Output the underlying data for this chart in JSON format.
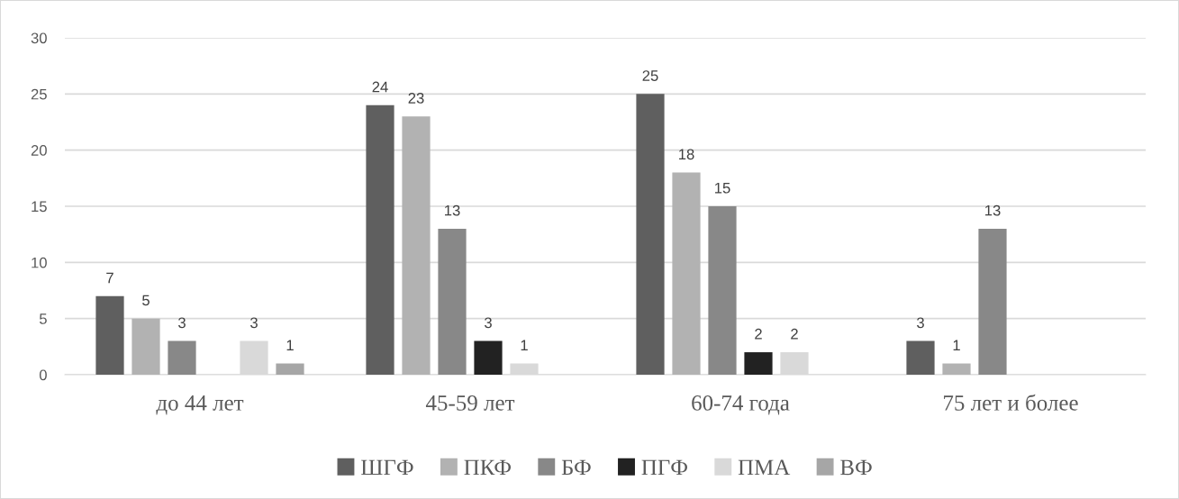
{
  "chart_data": {
    "type": "bar",
    "categories": [
      "до 44 лет",
      "45-59 лет",
      "60-74 года",
      "75 лет и более"
    ],
    "series": [
      {
        "name": "ШГФ",
        "color": "#5f5f5f",
        "values": [
          7,
          24,
          25,
          3
        ]
      },
      {
        "name": "ПКФ",
        "color": "#b2b2b2",
        "values": [
          5,
          23,
          18,
          1
        ]
      },
      {
        "name": "БФ",
        "color": "#888888",
        "values": [
          3,
          13,
          15,
          13
        ]
      },
      {
        "name": "ПГФ",
        "color": "#222222",
        "values": [
          null,
          3,
          2,
          null
        ]
      },
      {
        "name": "ПМА",
        "color": "#d9d9d9",
        "values": [
          3,
          1,
          2,
          null
        ]
      },
      {
        "name": "ВФ",
        "color": "#a6a6a6",
        "values": [
          1,
          null,
          null,
          null
        ]
      }
    ],
    "ylim": [
      0,
      30
    ],
    "yticks": [
      0,
      5,
      10,
      15,
      20,
      25,
      30
    ],
    "grid": "y",
    "legend": "bottom",
    "data_labels": true
  }
}
